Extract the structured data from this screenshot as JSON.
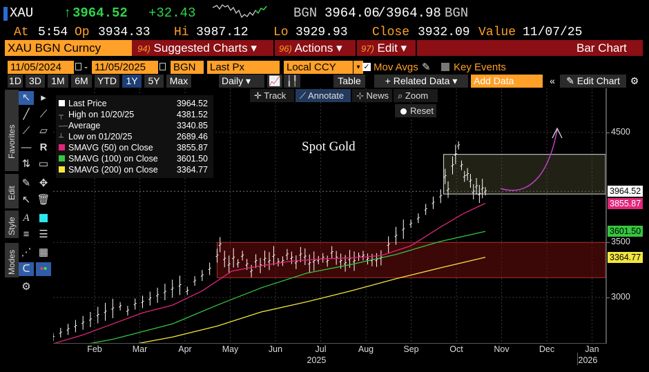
{
  "header": {
    "ticker": "XAU",
    "arrow": "↑",
    "last_price": "3964.52",
    "change": "+32.43",
    "source": "BGN",
    "bid": "3964.06",
    "ask": "3964.98",
    "source2": "BGN",
    "at_label": "At",
    "time": "5:54",
    "op_label": "Op",
    "open": "3934.33",
    "hi_label": "Hi",
    "high": "3987.12",
    "lo_label": "Lo",
    "low": "3929.93",
    "close_label": "Close",
    "close": "3932.09",
    "value_label": "Value",
    "value_date": "11/07/25"
  },
  "menubar": {
    "security": "XAU BGN Curncy",
    "suggested": {
      "num": "94)",
      "label": "Suggested Charts ▾"
    },
    "actions": {
      "num": "96)",
      "label": "Actions ▾"
    },
    "edit": {
      "num": "97)",
      "label": "Edit ▾"
    },
    "chart_type": "Bar Chart"
  },
  "controls": {
    "start_date": "11/05/2024",
    "dash": "-",
    "end_date": "11/05/2025",
    "source": "BGN",
    "field": "Last Px",
    "currency": "Local CCY",
    "mov_avgs": "Mov Avgs",
    "key_events": "Key Events"
  },
  "ranges": [
    "1D",
    "3D",
    "1M",
    "6M",
    "YTD",
    "1Y",
    "5Y",
    "Max"
  ],
  "selected_range": "1Y",
  "toolbar": {
    "periodicity": "Daily ▾",
    "table": "Table",
    "related": "+ Related Data ▾",
    "add_data_placeholder": "Add Data",
    "edit_chart": "Edit Chart"
  },
  "side_tabs": [
    "Favorites",
    "Edit",
    "Style",
    "Modes"
  ],
  "chart_tools": {
    "track": "Track",
    "annotate": "Annotate",
    "news": "News",
    "zoom": "Zoom",
    "reset": "Reset"
  },
  "legend": [
    {
      "label": "Last Price",
      "value": "3964.52",
      "color": "#ffffff"
    },
    {
      "label": "High on 10/20/25",
      "value": "4381.52",
      "color": ""
    },
    {
      "label": "Average",
      "value": "3340.85",
      "color": ""
    },
    {
      "label": "Low on 01/20/25",
      "value": "2689.46",
      "color": ""
    },
    {
      "label": "SMAVG (50)  on Close",
      "value": "3855.87",
      "color": "#e0267a"
    },
    {
      "label": "SMAVG (100)  on Close",
      "value": "3601.50",
      "color": "#34c640"
    },
    {
      "label": "SMAVG (200)  on Close",
      "value": "3364.77",
      "color": "#f2e640"
    }
  ],
  "annotation": "Spot Gold",
  "chart_data": {
    "type": "line",
    "title": "",
    "x_months": [
      "Feb",
      "Mar",
      "Apr",
      "May",
      "Jun",
      "Jul",
      "Aug",
      "Sep",
      "Oct",
      "Nov",
      "Dec",
      "Jan"
    ],
    "year_labels": [
      "2025",
      "2026"
    ],
    "y_ticks": [
      3000,
      3500,
      4500
    ],
    "ylim": [
      2580,
      4900
    ],
    "price_tags": [
      {
        "value": "3964.52",
        "color": "#ffffff"
      },
      {
        "value": "3855.87",
        "color": "#e0267a"
      },
      {
        "value": "3601.50",
        "color": "#34c640"
      },
      {
        "value": "3364.77",
        "color": "#f2e640"
      }
    ],
    "price_tag_levels": [
      3964.52,
      3855.87,
      3601.5,
      3364.77
    ],
    "series": [
      {
        "name": "Last Price",
        "color": "#ffffff",
        "points": [
          [
            0,
            2640
          ],
          [
            5,
            2680
          ],
          [
            10,
            2710
          ],
          [
            15,
            2740
          ],
          [
            20,
            2770
          ],
          [
            25,
            2800
          ],
          [
            30,
            2840
          ],
          [
            35,
            2870
          ],
          [
            40,
            2900
          ],
          [
            45,
            2920
          ],
          [
            50,
            2880
          ],
          [
            55,
            2940
          ],
          [
            60,
            2960
          ],
          [
            65,
            2990
          ],
          [
            70,
            3020
          ],
          [
            75,
            3050
          ],
          [
            80,
            3080
          ],
          [
            85,
            3110
          ],
          [
            90,
            3060
          ],
          [
            95,
            3150
          ],
          [
            100,
            3200
          ],
          [
            105,
            3260
          ],
          [
            110,
            3380
          ],
          [
            112,
            3480
          ],
          [
            115,
            3350
          ],
          [
            118,
            3300
          ],
          [
            121,
            3360
          ],
          [
            124,
            3310
          ],
          [
            127,
            3380
          ],
          [
            130,
            3300
          ],
          [
            133,
            3240
          ],
          [
            136,
            3330
          ],
          [
            139,
            3290
          ],
          [
            142,
            3350
          ],
          [
            145,
            3330
          ],
          [
            148,
            3380
          ],
          [
            151,
            3320
          ],
          [
            154,
            3330
          ],
          [
            157,
            3390
          ],
          [
            160,
            3360
          ],
          [
            163,
            3320
          ],
          [
            166,
            3390
          ],
          [
            169,
            3370
          ],
          [
            172,
            3310
          ],
          [
            175,
            3330
          ],
          [
            178,
            3340
          ],
          [
            181,
            3360
          ],
          [
            184,
            3330
          ],
          [
            187,
            3410
          ],
          [
            190,
            3360
          ],
          [
            193,
            3330
          ],
          [
            196,
            3310
          ],
          [
            199,
            3350
          ],
          [
            202,
            3330
          ],
          [
            205,
            3370
          ],
          [
            208,
            3380
          ],
          [
            211,
            3350
          ],
          [
            214,
            3340
          ],
          [
            217,
            3340
          ],
          [
            220,
            3360
          ],
          [
            225,
            3480
          ],
          [
            230,
            3560
          ],
          [
            235,
            3620
          ],
          [
            240,
            3670
          ],
          [
            245,
            3720
          ],
          [
            250,
            3800
          ],
          [
            255,
            3860
          ],
          [
            260,
            3920
          ],
          [
            263,
            4100
          ],
          [
            265,
            3980
          ],
          [
            268,
            4200
          ],
          [
            270,
            4300
          ],
          [
            272,
            4381
          ],
          [
            274,
            4200
          ],
          [
            276,
            4100
          ],
          [
            278,
            4120
          ],
          [
            280,
            4060
          ],
          [
            282,
            3960
          ],
          [
            284,
            4010
          ],
          [
            286,
            3940
          ],
          [
            288,
            3990
          ],
          [
            290,
            3964
          ]
        ]
      },
      {
        "name": "SMAVG (50)",
        "color": "#e0267a",
        "points": [
          [
            0,
            2580
          ],
          [
            20,
            2660
          ],
          [
            40,
            2760
          ],
          [
            60,
            2860
          ],
          [
            80,
            2930
          ],
          [
            100,
            3060
          ],
          [
            120,
            3240
          ],
          [
            140,
            3290
          ],
          [
            160,
            3330
          ],
          [
            180,
            3350
          ],
          [
            200,
            3360
          ],
          [
            220,
            3380
          ],
          [
            240,
            3470
          ],
          [
            260,
            3640
          ],
          [
            275,
            3760
          ],
          [
            290,
            3856
          ]
        ]
      },
      {
        "name": "SMAVG (100)",
        "color": "#34c640",
        "points": [
          [
            0,
            2520
          ],
          [
            40,
            2620
          ],
          [
            80,
            2760
          ],
          [
            110,
            2930
          ],
          [
            140,
            3090
          ],
          [
            170,
            3220
          ],
          [
            200,
            3300
          ],
          [
            230,
            3390
          ],
          [
            260,
            3510
          ],
          [
            290,
            3601
          ]
        ]
      },
      {
        "name": "SMAVG (200)",
        "color": "#f2e640",
        "points": [
          [
            0,
            2480
          ],
          [
            40,
            2540
          ],
          [
            80,
            2640
          ],
          [
            110,
            2740
          ],
          [
            140,
            2870
          ],
          [
            170,
            2960
          ],
          [
            200,
            3060
          ],
          [
            230,
            3170
          ],
          [
            260,
            3270
          ],
          [
            290,
            3365
          ]
        ]
      }
    ]
  }
}
